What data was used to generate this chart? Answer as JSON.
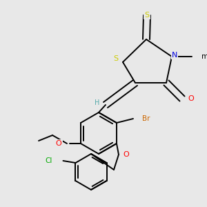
{
  "bg_color": "#e8e8e8",
  "S_color": "#cccc00",
  "N_color": "#0000dd",
  "O_color": "#ff0000",
  "Br_color": "#cc6600",
  "Cl_color": "#00aa00",
  "C_color": "#000000",
  "H_color": "#55aaaa",
  "bond_color": "#000000",
  "lw": 1.4,
  "fs": 7.5,
  "doff": 0.006,
  "xlim": [
    0,
    300
  ],
  "ylim": [
    0,
    300
  ]
}
